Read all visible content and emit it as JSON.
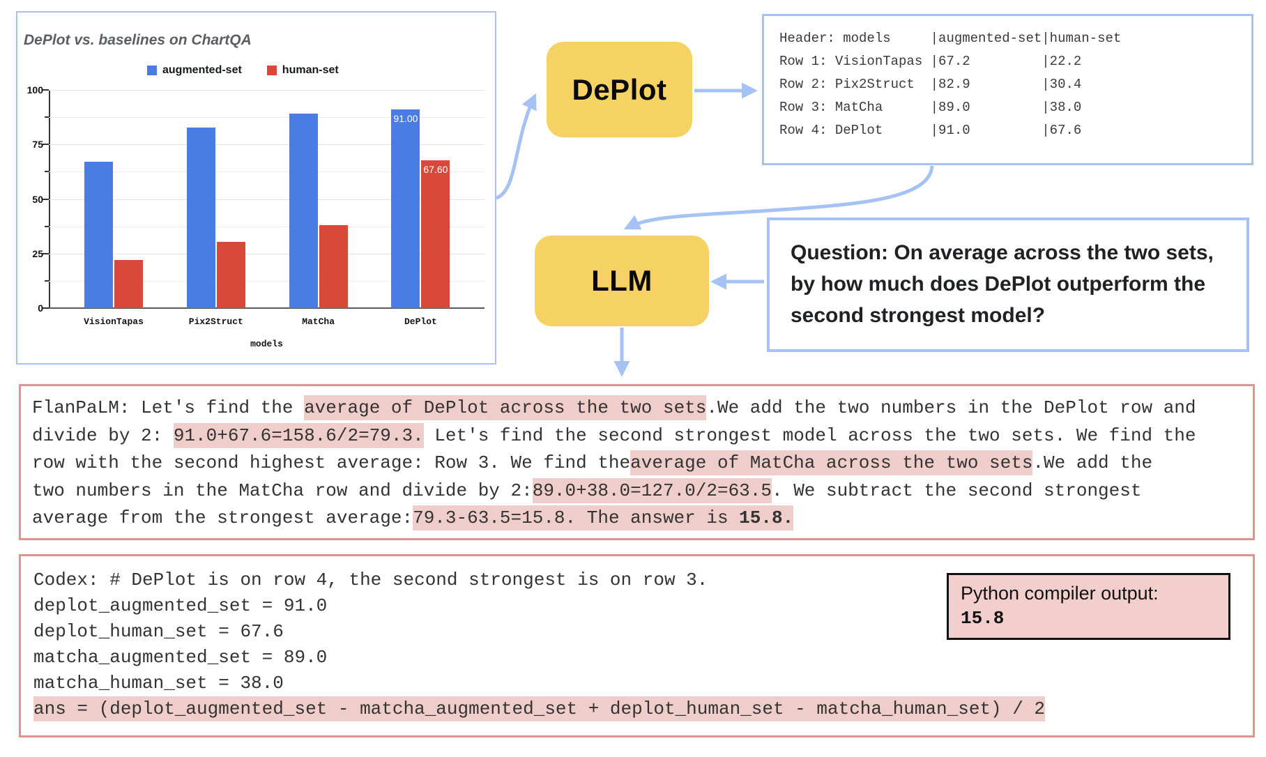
{
  "colors": {
    "accent_blue": "#a4c2f4",
    "bar_blue": "#4a7de4",
    "bar_red": "#d9493b",
    "box_yellow": "#f5d263",
    "red_border": "#e2938e",
    "highlight_pink": "#efcdca",
    "compiler_bg": "#f2cfcc"
  },
  "chart_data": {
    "type": "bar",
    "title": "DePlot vs. baselines on ChartQA",
    "categories": [
      "VisionTapas",
      "Pix2Struct",
      "MatCha",
      "DePlot"
    ],
    "series": [
      {
        "name": "augmented-set",
        "color_key": "bar_blue",
        "values": [
          67.2,
          82.9,
          89.0,
          91.0
        ],
        "labels": [
          null,
          null,
          null,
          "91.00"
        ]
      },
      {
        "name": "human-set",
        "color_key": "bar_red",
        "values": [
          22.2,
          30.4,
          38.0,
          67.6
        ],
        "labels": [
          null,
          null,
          null,
          "67.60"
        ]
      }
    ],
    "xlabel": "models",
    "ylabel": "",
    "ylim": [
      0,
      100
    ],
    "yticks": [
      0,
      25,
      50,
      75,
      100
    ],
    "grid": true,
    "legend_position": "top"
  },
  "deplot_box": {
    "label": "DePlot"
  },
  "llm_box": {
    "label": "LLM"
  },
  "table": {
    "lines": [
      "Header: models     |augmented-set|human-set",
      "Row 1: VisionTapas |67.2         |22.2",
      "Row 2: Pix2Struct  |82.9         |30.4",
      "Row 3: MatCha      |89.0         |38.0",
      "Row 4: DePlot      |91.0         |67.6"
    ]
  },
  "question": {
    "lines": [
      "Question: On average across the two sets,",
      "by how much does DePlot outperform the",
      "second strongest model?"
    ]
  },
  "flanpalm": {
    "lines": [
      [
        {
          "t": "FlanPaLM: Let's find the ",
          "h": false
        },
        {
          "t": "average of DePlot across the two sets",
          "h": true
        },
        {
          "t": ".",
          "h": false
        },
        {
          "t": "We add the two numbers in the DePlot row and",
          "h": false
        }
      ],
      [
        {
          "t": "divide by 2: ",
          "h": false
        },
        {
          "t": "91.0+67.6=158.6/2=79.3.",
          "h": true
        },
        {
          "t": " Let's find the second strongest model across the two sets. We find the",
          "h": false
        }
      ],
      [
        {
          "t": "row with the second highest average: Row 3. We find the",
          "h": false
        },
        {
          "t": "average of MatCha across the two sets",
          "h": true
        },
        {
          "t": ".We add the",
          "h": false
        }
      ],
      [
        {
          "t": "two numbers in the MatCha row and divide by 2:",
          "h": false
        },
        {
          "t": "89.0+38.0=127.0/2=63.5",
          "h": true
        },
        {
          "t": ". We subtract the second strongest",
          "h": false
        }
      ],
      [
        {
          "t": "average from the strongest average:",
          "h": false
        },
        {
          "t": "79.3-63.5=15.8. The answer is ",
          "h": true
        },
        {
          "t": "15.8.",
          "h": true,
          "b": true
        }
      ]
    ]
  },
  "codex": {
    "lines": [
      {
        "text": "Codex: # DePlot is on row 4, the second strongest is on row 3.",
        "highlight": false
      },
      {
        "text": "deplot_augmented_set = 91.0",
        "highlight": false
      },
      {
        "text": "deplot_human_set = 67.6",
        "highlight": false
      },
      {
        "text": "matcha_augmented_set = 89.0",
        "highlight": false
      },
      {
        "text": "matcha_human_set = 38.0",
        "highlight": false
      },
      {
        "text": "ans = (deplot_augmented_set - matcha_augmented_set + deplot_human_set - matcha_human_set) / 2",
        "highlight": true
      }
    ]
  },
  "compiler": {
    "label": "Python compiler output:",
    "value": "15.8"
  }
}
